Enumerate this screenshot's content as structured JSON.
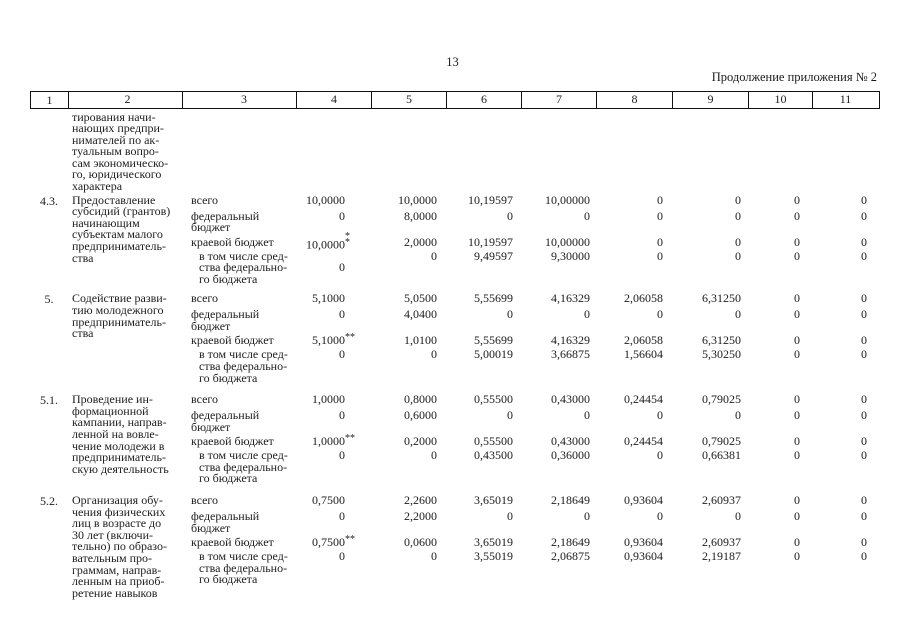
{
  "page": {
    "number": "13",
    "continuation": "Продолжение приложения № 2"
  },
  "table": {
    "header_cols": [
      "1",
      "2",
      "3",
      "4",
      "5",
      "6",
      "7",
      "8",
      "9",
      "10",
      "11"
    ],
    "carryover_lines": [
      "тирования начи-",
      "нающих предпри-",
      "нимателей по ак-",
      "туальным вопро-",
      "сам экономическо-",
      "го, юридического",
      "характера"
    ],
    "row_labels": [
      [
        "всего"
      ],
      [
        "федеральный",
        "бюджет"
      ],
      [
        "краевой бюджет"
      ],
      [
        "в том числе сред-",
        "ства федерально-",
        "го бюджета"
      ]
    ],
    "groups": [
      {
        "num": "4.3.",
        "desc": [
          "Предоставление",
          "субсидий (грантов)",
          "начинающим",
          "субъектам малого",
          "предприниматель-",
          "ства"
        ],
        "rows": [
          {
            "values": [
              "10,0000",
              "10,0000",
              "10,19597",
              "10,00000",
              "0",
              "0",
              "0",
              "0"
            ]
          },
          {
            "values": [
              "0",
              "8,0000",
              "0",
              "0",
              "0",
              "0",
              "0",
              "0"
            ]
          },
          {
            "values": [
              "10,0000",
              "2,0000",
              "10,19597",
              "10,00000",
              "0",
              "0",
              "0",
              "0"
            ],
            "marker": [
              "*",
              "*"
            ],
            "marker_stacked": true
          },
          {
            "values": [
              "0",
              "0",
              "9,49597",
              "9,30000",
              "0",
              "0",
              "0",
              "0"
            ],
            "col4_lowered": true
          }
        ]
      },
      {
        "num": "5.",
        "desc": [
          "Содействие разви-",
          "тию молодежного",
          "предприниматель-",
          "ства"
        ],
        "rows": [
          {
            "values": [
              "5,1000",
              "5,0500",
              "5,55699",
              "4,16329",
              "2,06058",
              "6,31250",
              "0",
              "0"
            ]
          },
          {
            "values": [
              "0",
              "4,0400",
              "0",
              "0",
              "0",
              "0",
              "0",
              "0"
            ]
          },
          {
            "values": [
              "5,1000",
              "1,0100",
              "5,55699",
              "4,16329",
              "2,06058",
              "6,31250",
              "0",
              "0"
            ],
            "marker": "**"
          },
          {
            "values": [
              "0",
              "0",
              "5,00019",
              "3,66875",
              "1,56604",
              "5,30250",
              "0",
              "0"
            ]
          }
        ]
      },
      {
        "num": "5.1.",
        "desc": [
          "Проведение ин-",
          "формационной",
          "кампании, направ-",
          "ленной на вовле-",
          "чение молодежи в",
          "предприниматель-",
          "скую деятельность"
        ],
        "rows": [
          {
            "values": [
              "1,0000",
              "0,8000",
              "0,55500",
              "0,43000",
              "0,24454",
              "0,79025",
              "0",
              "0"
            ]
          },
          {
            "values": [
              "0",
              "0,6000",
              "0",
              "0",
              "0",
              "0",
              "0",
              "0"
            ]
          },
          {
            "values": [
              "1,0000",
              "0,2000",
              "0,55500",
              "0,43000",
              "0,24454",
              "0,79025",
              "0",
              "0"
            ],
            "marker": "**"
          },
          {
            "values": [
              "0",
              "0",
              "0,43500",
              "0,36000",
              "0",
              "0,66381",
              "0",
              "0"
            ]
          }
        ]
      },
      {
        "num": "5.2.",
        "desc": [
          "Организация обу-",
          "чения физических",
          "лиц в возрасте до",
          "30 лет (включи-",
          "тельно) по образо-",
          "вательным про-",
          "граммам, направ-",
          "ленным на приоб-",
          "ретение навыков"
        ],
        "rows": [
          {
            "values": [
              "0,7500",
              "2,2600",
              "3,65019",
              "2,18649",
              "0,93604",
              "2,60937",
              "0",
              "0"
            ]
          },
          {
            "values": [
              "0",
              "2,2000",
              "0",
              "0",
              "0",
              "0",
              "0",
              "0"
            ]
          },
          {
            "values": [
              "0,7500",
              "0,0600",
              "3,65019",
              "2,18649",
              "0,93604",
              "2,60937",
              "0",
              "0"
            ],
            "marker": "**"
          },
          {
            "values": [
              "0",
              "0",
              "3,55019",
              "2,06875",
              "0,93604",
              "2,19187",
              "0",
              "0"
            ]
          }
        ]
      }
    ]
  }
}
